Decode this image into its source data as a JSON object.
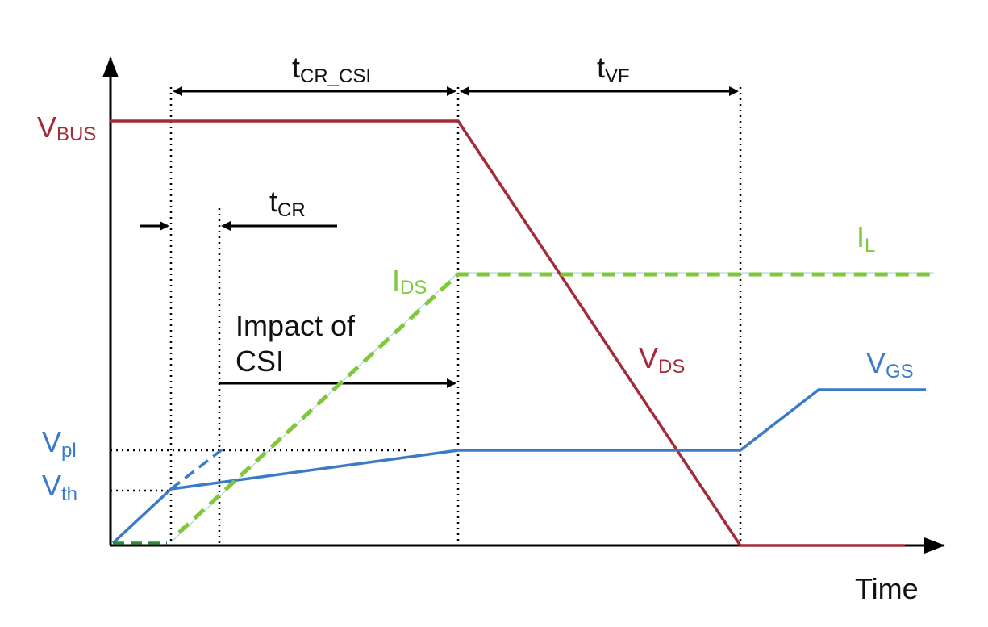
{
  "colors": {
    "vds": "#a52a3a",
    "vgs": "#3a7ac8",
    "ids": "#7ec83a",
    "ids_early": "#2e8b3a",
    "axis": "#000000"
  },
  "labels": {
    "vbus": {
      "main": "V",
      "sub": "BUS"
    },
    "vpl": {
      "main": "V",
      "sub": "pl"
    },
    "vth": {
      "main": "V",
      "sub": "th"
    },
    "ids": {
      "main": "I",
      "sub": "DS"
    },
    "il": {
      "main": "I",
      "sub": "L"
    },
    "vds": {
      "main": "V",
      "sub": "DS"
    },
    "vgs": {
      "main": "V",
      "sub": "GS"
    },
    "t_cr_csi": {
      "main": "t",
      "sub": "CR_CSI"
    },
    "t_vf": {
      "main": "t",
      "sub": "VF"
    },
    "t_cr": {
      "main": "t",
      "sub": "CR"
    },
    "impact_line1": "Impact of",
    "impact_line2": "CSI",
    "time_axis": "Time"
  }
}
